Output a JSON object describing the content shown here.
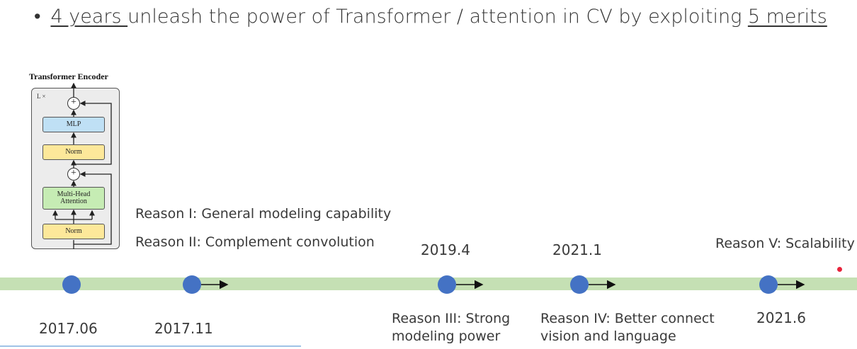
{
  "headline": {
    "bullet": "•",
    "underlined_start": "4 years ",
    "middle": "unleash the power of Transformer / attention in CV by exploiting ",
    "underlined_end": "5 merits"
  },
  "encoder": {
    "title": "Transformer Encoder",
    "repeat": "L ×",
    "mlp": "MLP",
    "norm_top": "Norm",
    "mha_line1": "Multi-Head",
    "mha_line2": "Attention",
    "norm_bottom": "Norm",
    "plus": "+"
  },
  "timeline": {
    "accent_color": "#4472c4",
    "band_color": "#c5e0b4",
    "dates": {
      "d1": "2017.06",
      "d2": "2017.11",
      "d3": "2019.4",
      "d4": "2021.1",
      "d5": "2021.6"
    },
    "reasons": {
      "r1": "Reason I: General modeling capability",
      "r2": "Reason II: Complement convolution",
      "r3": "Reason III: Strong modeling power",
      "r4": "Reason IV: Better connect vision and language",
      "r5": "Reason V: Scalability"
    }
  }
}
